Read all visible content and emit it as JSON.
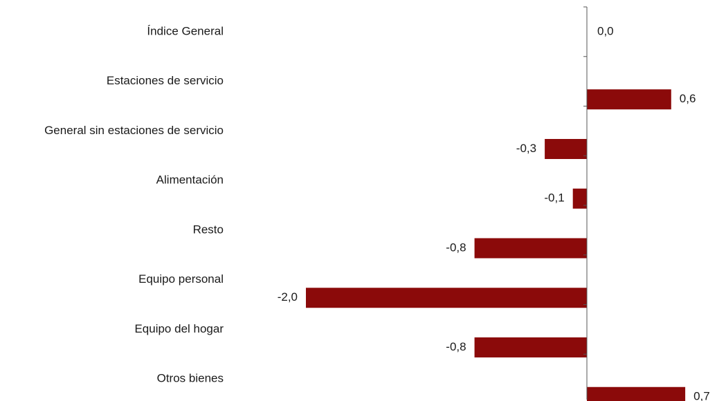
{
  "chart_data": {
    "type": "bar",
    "orientation": "horizontal",
    "categories": [
      "Índice General",
      "Estaciones de servicio",
      "General sin estaciones de servicio",
      "Alimentación",
      "Resto",
      "Equipo personal",
      "Equipo del hogar",
      "Otros bienes"
    ],
    "values": [
      0.0,
      0.6,
      -0.3,
      -0.1,
      -0.8,
      -2.0,
      -0.8,
      0.7
    ],
    "value_labels": [
      "0,0",
      "0,6",
      "-0,3",
      "-0,1",
      "-0,8",
      "-2,0",
      "-0,8",
      "0,7"
    ],
    "title": "",
    "xlabel": "",
    "ylabel": "",
    "xlim": [
      -2.0,
      0.7
    ],
    "grid": false,
    "legend": "none",
    "bar_color": "#8b0a0a",
    "axis_color": "#555555"
  }
}
